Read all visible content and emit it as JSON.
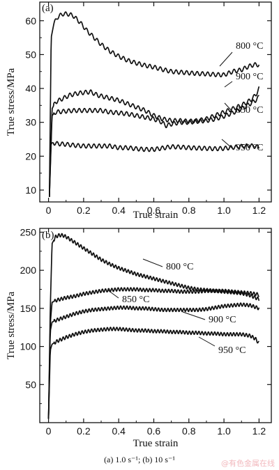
{
  "caption": "(a) 1.0 s⁻¹; (b) 10 s⁻¹",
  "watermark": "@有色金属在线",
  "chart_data": [
    {
      "type": "line",
      "panel_label": "(a)",
      "xlabel": "True strain",
      "ylabel": "True stress/MPa",
      "xlim": [
        -0.05,
        1.27
      ],
      "ylim": [
        6.5,
        65.5
      ],
      "xticks": [
        0,
        0.2,
        0.4,
        0.6,
        0.8,
        1.0,
        1.2
      ],
      "xtick_labels": [
        "0",
        "0.2",
        "0.4",
        "0.6",
        "0.8",
        "1.0",
        "1.2"
      ],
      "yticks": [
        10,
        20,
        30,
        40,
        50,
        60
      ],
      "ytick_labels": [
        "10",
        "20",
        "30",
        "40",
        "50",
        "60"
      ],
      "grid": false,
      "series": [
        {
          "name": "800 °C",
          "x": [
            0.005,
            0.015,
            0.03,
            0.05,
            0.08,
            0.11,
            0.14,
            0.18,
            0.22,
            0.26,
            0.3,
            0.35,
            0.4,
            0.45,
            0.5,
            0.55,
            0.6,
            0.65,
            0.7,
            0.75,
            0.8,
            0.85,
            0.9,
            0.95,
            1.0,
            1.05,
            1.1,
            1.14,
            1.17,
            1.2
          ],
          "y": [
            8,
            55,
            59,
            61,
            62,
            62,
            61.5,
            59.5,
            57,
            55,
            53,
            51,
            49.5,
            48.3,
            47.5,
            46.8,
            46.3,
            45.6,
            45,
            44.8,
            44.6,
            44.4,
            44.3,
            44.1,
            44,
            45,
            45.5,
            46.5,
            47,
            47
          ]
        },
        {
          "name": "900 °C",
          "x": [
            0.005,
            0.02,
            0.04,
            0.08,
            0.12,
            0.16,
            0.2,
            0.24,
            0.28,
            0.32,
            0.36,
            0.4,
            0.45,
            0.5,
            0.55,
            0.6,
            0.65,
            0.7,
            0.75,
            0.8,
            0.85,
            0.9,
            0.95,
            1.0,
            1.05,
            1.1,
            1.15,
            1.18,
            1.2
          ],
          "y": [
            8,
            34,
            36,
            37,
            38,
            38.5,
            38.8,
            39,
            38,
            37.5,
            37,
            36.5,
            35.5,
            34.5,
            33.5,
            32,
            31,
            30.5,
            30.5,
            30.3,
            30.5,
            31,
            32,
            33,
            34,
            35,
            36.5,
            38,
            40
          ]
        },
        {
          "name": "850 °C",
          "x": [
            0.005,
            0.02,
            0.04,
            0.08,
            0.12,
            0.16,
            0.2,
            0.25,
            0.3,
            0.35,
            0.4,
            0.45,
            0.5,
            0.55,
            0.6,
            0.64,
            0.67,
            0.7,
            0.75,
            0.8,
            0.85,
            0.9,
            0.95,
            1.0,
            1.05,
            1.1,
            1.15,
            1.18,
            1.2
          ],
          "y": [
            8,
            32,
            33,
            33.2,
            33.4,
            33.5,
            33.5,
            33.5,
            33.5,
            33,
            32.8,
            32.5,
            32,
            31.5,
            31,
            30.2,
            29,
            29.5,
            30,
            30,
            30.3,
            30.5,
            31,
            31.8,
            32.8,
            34,
            35.5,
            36.5,
            37.5
          ]
        },
        {
          "name": "950 °C",
          "x": [
            0.005,
            0.01,
            0.02,
            0.05,
            0.1,
            0.15,
            0.2,
            0.25,
            0.3,
            0.35,
            0.4,
            0.45,
            0.5,
            0.55,
            0.6,
            0.65,
            0.7,
            0.75,
            0.8,
            0.85,
            0.9,
            0.95,
            1.0,
            1.05,
            1.1,
            1.15,
            1.2
          ],
          "y": [
            8,
            23,
            24,
            23.7,
            23.5,
            23.2,
            23,
            23,
            23,
            23,
            22.5,
            22.5,
            22.2,
            22,
            22,
            22.4,
            22.8,
            22.7,
            22.5,
            22.4,
            22.3,
            22.2,
            22.3,
            22.6,
            22.9,
            23.1,
            22.7
          ]
        }
      ],
      "annotations": [
        "800 °C",
        "900 °C",
        "850 °C",
        "950 °C"
      ]
    },
    {
      "type": "line",
      "panel_label": "(b)",
      "xlabel": "True strain",
      "ylabel": "True stress/MPa",
      "xlim": [
        -0.05,
        1.27
      ],
      "ylim": [
        0,
        255
      ],
      "xticks": [
        0,
        0.2,
        0.4,
        0.6,
        0.8,
        1.0,
        1.2
      ],
      "xtick_labels": [
        "0",
        "0.2",
        "0.4",
        "0.6",
        "0.8",
        "1.0",
        "1.2"
      ],
      "yticks": [
        50,
        100,
        150,
        200,
        250
      ],
      "ytick_labels": [
        "50",
        "100",
        "150",
        "200",
        "250"
      ],
      "grid": false,
      "series": [
        {
          "name": "800 °C",
          "x": [
            0.0,
            0.01,
            0.02,
            0.04,
            0.06,
            0.08,
            0.1,
            0.14,
            0.18,
            0.22,
            0.26,
            0.3,
            0.35,
            0.4,
            0.45,
            0.5,
            0.55,
            0.6,
            0.65,
            0.7,
            0.75,
            0.8,
            0.85,
            0.9,
            0.95,
            1.0,
            1.05,
            1.1,
            1.15,
            1.2
          ],
          "y": [
            5,
            150,
            235,
            244,
            246,
            246,
            244,
            238,
            232,
            226,
            220,
            214,
            208,
            203,
            199,
            195,
            192,
            189,
            186,
            183,
            180,
            177,
            175,
            174,
            173,
            172,
            171,
            170,
            167,
            162
          ]
        },
        {
          "name": "850 °C",
          "x": [
            0.0,
            0.01,
            0.02,
            0.05,
            0.1,
            0.15,
            0.2,
            0.25,
            0.3,
            0.35,
            0.4,
            0.45,
            0.5,
            0.55,
            0.6,
            0.65,
            0.7,
            0.75,
            0.8,
            0.85,
            0.9,
            0.95,
            1.0,
            1.05,
            1.1,
            1.15,
            1.2
          ],
          "y": [
            5,
            130,
            158,
            161,
            164,
            166,
            169,
            171,
            173,
            174,
            175,
            175,
            175,
            174,
            174,
            173,
            173,
            172,
            172,
            172,
            173,
            173,
            173,
            172,
            171,
            170,
            168
          ]
        },
        {
          "name": "900 °C",
          "x": [
            0.0,
            0.01,
            0.02,
            0.05,
            0.1,
            0.15,
            0.2,
            0.25,
            0.3,
            0.35,
            0.4,
            0.45,
            0.5,
            0.55,
            0.6,
            0.65,
            0.7,
            0.75,
            0.8,
            0.85,
            0.9,
            0.95,
            1.0,
            1.05,
            1.1,
            1.15,
            1.2
          ],
          "y": [
            5,
            120,
            132,
            135,
            139,
            143,
            146,
            148,
            149,
            150,
            151,
            151,
            150,
            150,
            149,
            148,
            148,
            148,
            148,
            148,
            149,
            151,
            153,
            154,
            155,
            154,
            150
          ]
        },
        {
          "name": "950 °C",
          "x": [
            0.0,
            0.01,
            0.02,
            0.05,
            0.1,
            0.15,
            0.2,
            0.25,
            0.3,
            0.35,
            0.4,
            0.45,
            0.5,
            0.55,
            0.6,
            0.65,
            0.7,
            0.75,
            0.8,
            0.85,
            0.9,
            0.95,
            1.0,
            1.05,
            1.1,
            1.15,
            1.18,
            1.2
          ],
          "y": [
            5,
            95,
            103,
            107,
            112,
            116,
            119,
            121,
            122,
            123,
            123,
            122,
            121,
            121,
            120,
            120,
            119,
            119,
            118,
            118,
            117,
            117,
            116,
            116,
            116,
            114,
            110,
            104
          ]
        }
      ],
      "annotations": [
        "800 °C",
        "850 °C",
        "900 °C",
        "950 °C"
      ]
    }
  ]
}
